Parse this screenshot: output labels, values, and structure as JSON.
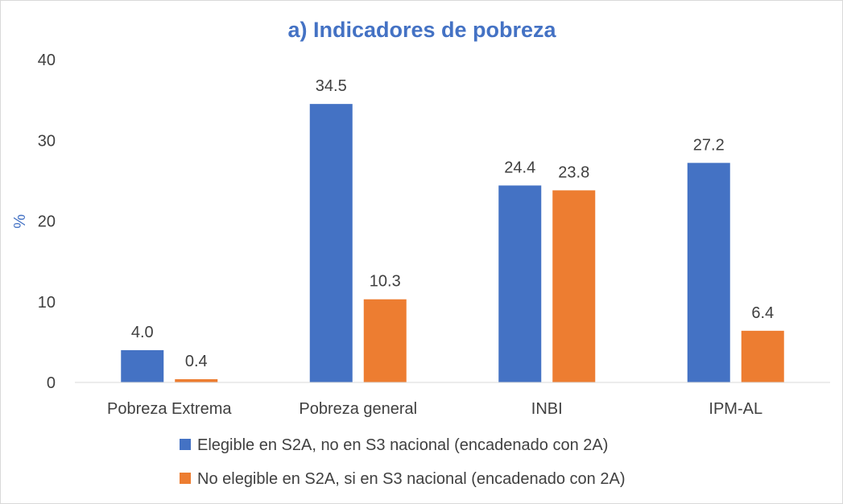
{
  "chart_data": {
    "type": "bar",
    "title": "a) Indicadores de pobreza",
    "xlabel": "",
    "ylabel": "%",
    "ylim": [
      0,
      40
    ],
    "yticks": [
      0,
      10,
      20,
      30,
      40
    ],
    "grid": false,
    "legend_position": "bottom",
    "categories": [
      "Pobreza Extrema",
      "Pobreza general",
      "INBI",
      "IPM-AL"
    ],
    "series": [
      {
        "name": "Elegible en S2A, no en S3 nacional (encadenado con 2A)",
        "color": "#4472c4",
        "values": [
          4.0,
          34.5,
          24.4,
          27.2
        ],
        "labels": [
          "4.0",
          "34.5",
          "24.4",
          "27.2"
        ]
      },
      {
        "name": "No elegible en S2A, si en S3 nacional (encadenado con 2A)",
        "color": "#ed7d31",
        "values": [
          0.4,
          10.3,
          23.8,
          6.4
        ],
        "labels": [
          "0.4",
          "10.3",
          "23.8",
          "6.4"
        ]
      }
    ]
  }
}
